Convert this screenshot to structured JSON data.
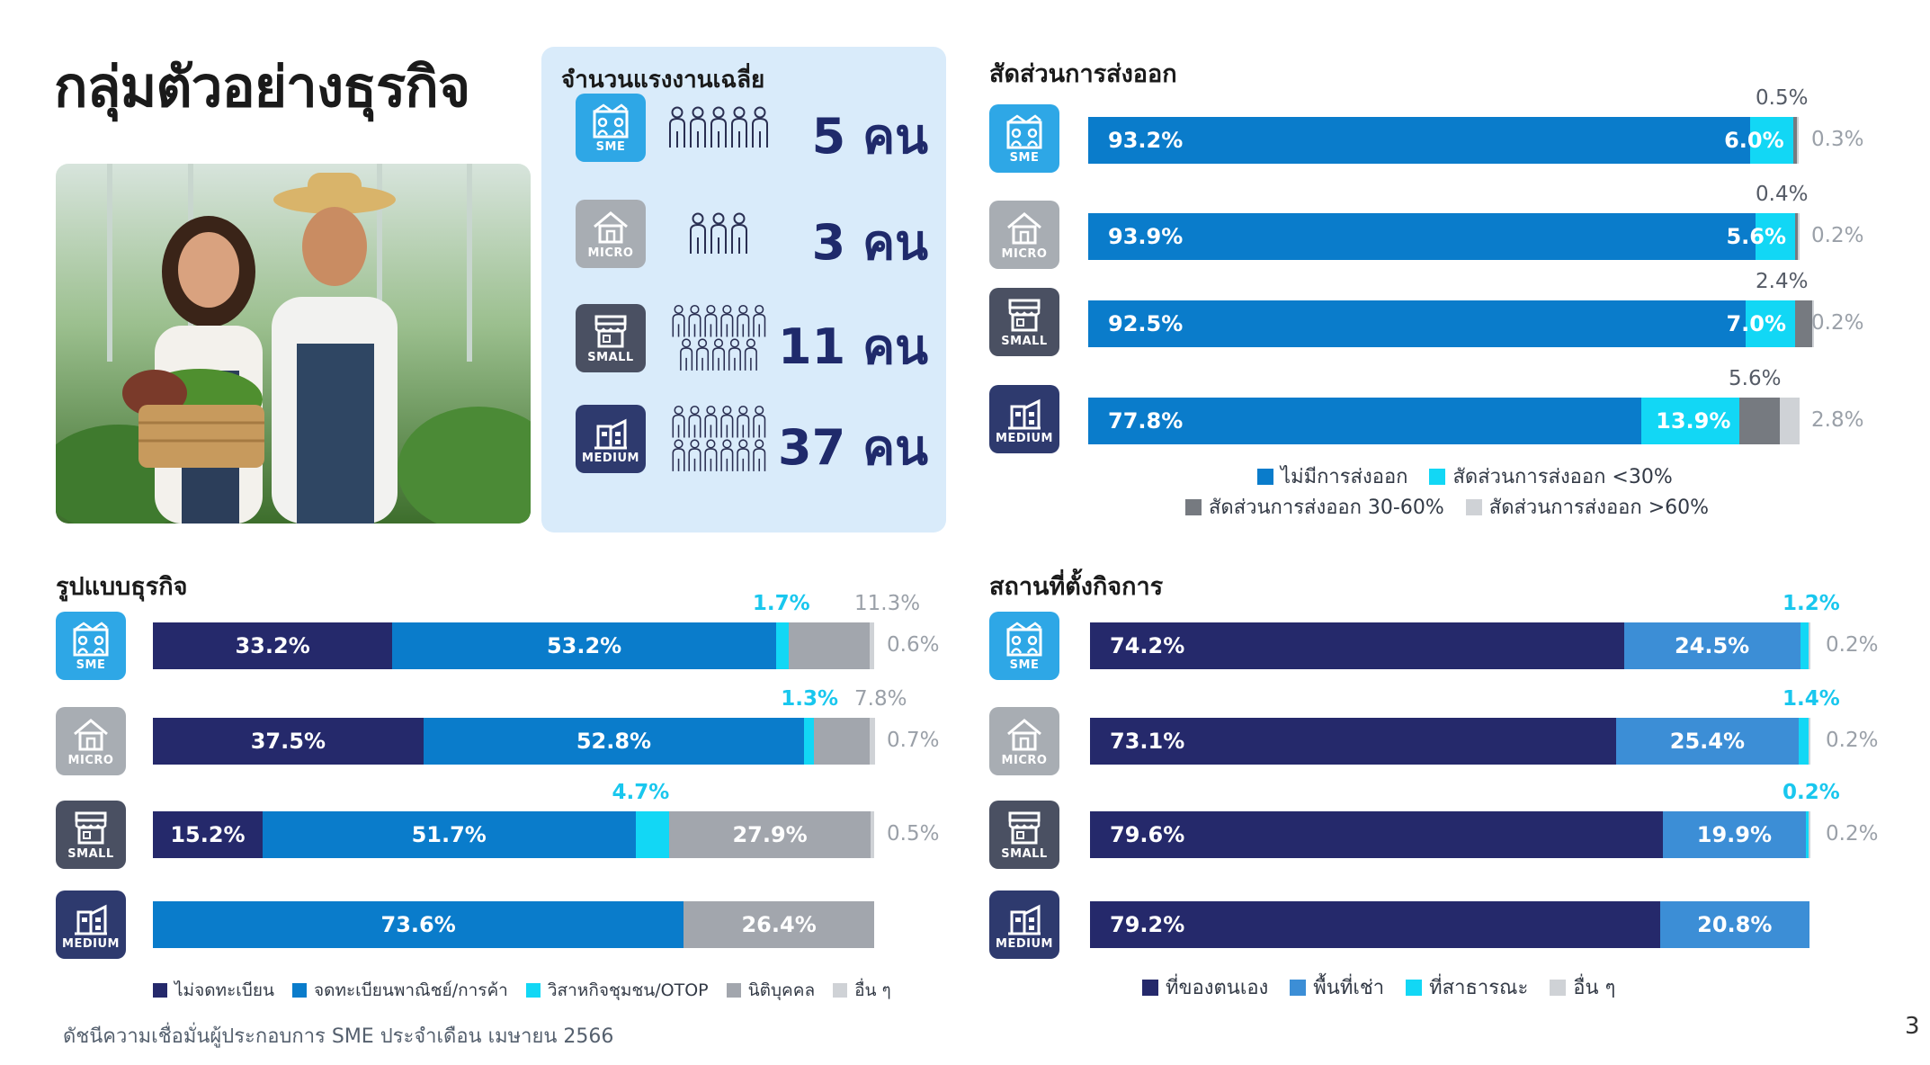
{
  "page": {
    "title": "กลุ่มตัวอย่างธุรกิจ",
    "footer": "ดัชนีความเชื่อมั่นผู้ประกอบการ SME ประจำเดือน เมษายน 2566",
    "page_number": "3"
  },
  "colors": {
    "navy": "#25296b",
    "blue": "#0a7ccb",
    "mid_blue": "#3c8ed6",
    "cyan": "#12d7f5",
    "gray": "#a2a6ad",
    "dark_gray": "#767a80",
    "light_gray": "#cfd2d6",
    "icon_blue": "#2ea7e6",
    "icon_gray": "#a8adb3",
    "icon_dark": "#4a5062",
    "icon_navy": "#2e3a6e"
  },
  "business_sizes": [
    "SME",
    "MICRO",
    "SMALL",
    "MEDIUM"
  ],
  "employees": {
    "title": "จำนวนแรงงานเฉลี่ย",
    "rows": [
      {
        "size": "SME",
        "count": "5 คน",
        "people": 5
      },
      {
        "size": "MICRO",
        "count": "3 คน",
        "people": 3
      },
      {
        "size": "SMALL",
        "count": "11 คน",
        "people": 11
      },
      {
        "size": "MEDIUM",
        "count": "37 คน",
        "people": 37
      }
    ]
  },
  "chart_data": [
    {
      "type": "bar",
      "title": "สัดส่วนการส่งออก",
      "categories": [
        "SME",
        "MICRO",
        "SMALL",
        "MEDIUM"
      ],
      "series": [
        {
          "name": "ไม่มีการส่งออก",
          "values": [
            93.2,
            93.9,
            92.5,
            77.8
          ],
          "labels": [
            "93.2%",
            "93.9%",
            "92.5%",
            "77.8%"
          ]
        },
        {
          "name": "สัดส่วนการส่งออก <30%",
          "values": [
            6.0,
            5.6,
            7.0,
            13.9
          ],
          "labels": [
            "6.0%",
            "5.6%",
            "7.0%",
            "13.9%"
          ]
        },
        {
          "name": "สัดส่วนการส่งออก 30-60%",
          "values": [
            0.5,
            0.4,
            2.4,
            5.6
          ],
          "labels": [
            "0.5%",
            "0.4%",
            "2.4%",
            "5.6%"
          ]
        },
        {
          "name": "สัดส่วนการส่งออก >60%",
          "values": [
            0.3,
            0.2,
            0.2,
            2.8
          ],
          "labels": [
            "0.3%",
            "0.2%",
            "0.2%",
            "2.8%"
          ]
        }
      ],
      "stacked": true,
      "orientation": "horizontal",
      "xlim": [
        0,
        100
      ]
    },
    {
      "type": "bar",
      "title": "รูปแบบธุรกิจ",
      "categories": [
        "SME",
        "MICRO",
        "SMALL",
        "MEDIUM"
      ],
      "series": [
        {
          "name": "ไม่จดทะเบียน",
          "values": [
            33.2,
            37.5,
            15.2,
            0
          ],
          "labels": [
            "33.2%",
            "37.5%",
            "15.2%",
            ""
          ]
        },
        {
          "name": "จดทะเบียนพาณิชย์/การค้า",
          "values": [
            53.2,
            52.8,
            51.7,
            73.6
          ],
          "labels": [
            "53.2%",
            "52.8%",
            "51.7%",
            "73.6%"
          ]
        },
        {
          "name": "วิสาหกิจชุมชน/OTOP",
          "values": [
            1.7,
            1.3,
            4.7,
            0
          ],
          "labels": [
            "1.7%",
            "1.3%",
            "4.7%",
            ""
          ]
        },
        {
          "name": "นิติบุคคล",
          "values": [
            11.3,
            7.8,
            27.9,
            26.4
          ],
          "labels": [
            "11.3%",
            "7.8%",
            "27.9%",
            "26.4%"
          ]
        },
        {
          "name": "อื่น ๆ",
          "values": [
            0.6,
            0.7,
            0.5,
            0
          ],
          "labels": [
            "0.6%",
            "0.7%",
            "0.5%",
            ""
          ]
        }
      ],
      "stacked": true,
      "orientation": "horizontal",
      "xlim": [
        0,
        100
      ]
    },
    {
      "type": "bar",
      "title": "สถานที่ตั้งกิจการ",
      "categories": [
        "SME",
        "MICRO",
        "SMALL",
        "MEDIUM"
      ],
      "series": [
        {
          "name": "ที่ของตนเอง",
          "values": [
            74.2,
            73.1,
            79.6,
            79.2
          ],
          "labels": [
            "74.2%",
            "73.1%",
            "79.6%",
            "79.2%"
          ]
        },
        {
          "name": "พื้นที่เช่า",
          "values": [
            24.5,
            25.4,
            19.9,
            20.8
          ],
          "labels": [
            "24.5%",
            "25.4%",
            "19.9%",
            "20.8%"
          ]
        },
        {
          "name": "ที่สาธารณะ",
          "values": [
            1.2,
            1.4,
            0.2,
            0
          ],
          "labels": [
            "1.2%",
            "1.4%",
            "0.2%",
            ""
          ]
        },
        {
          "name": "อื่น ๆ",
          "values": [
            0.2,
            0.2,
            0.2,
            0
          ],
          "labels": [
            "0.2%",
            "0.2%",
            "0.2%",
            ""
          ]
        }
      ],
      "stacked": true,
      "orientation": "horizontal",
      "xlim": [
        0,
        100
      ]
    }
  ]
}
